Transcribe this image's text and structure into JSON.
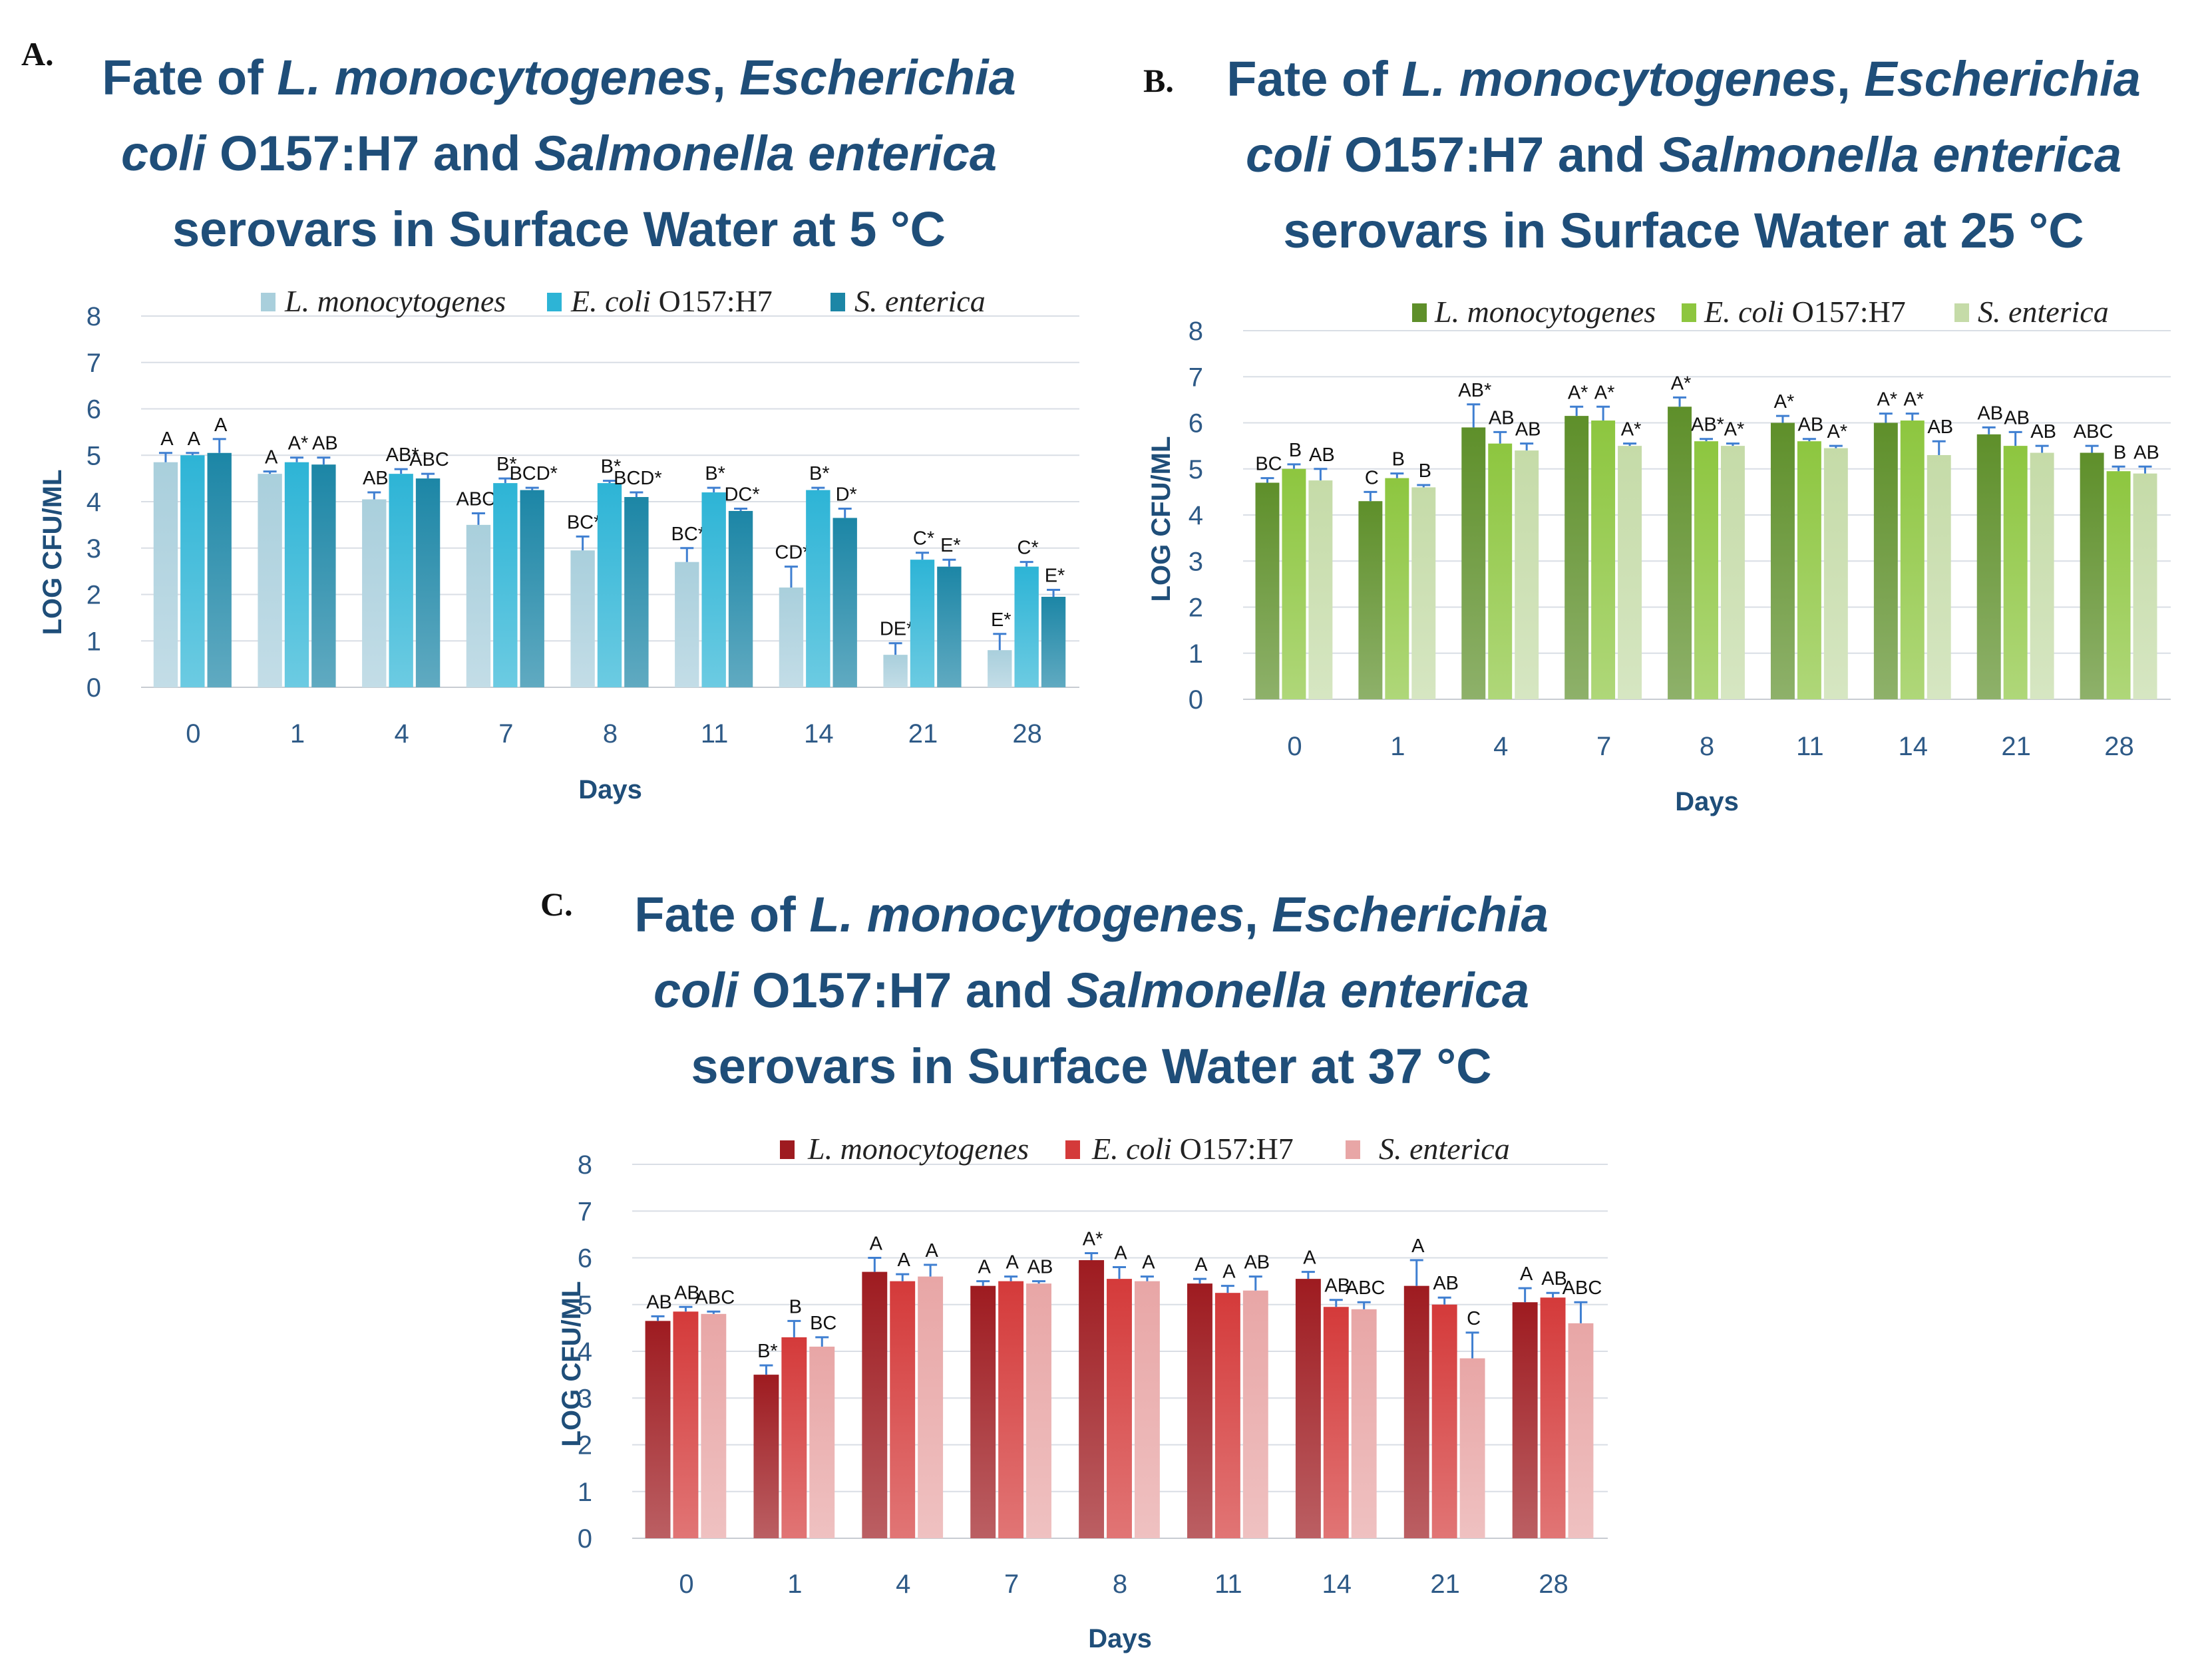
{
  "chart_data": [
    {
      "type": "bar",
      "panel": "A.",
      "title": {
        "pre": "Fate of ",
        "i1": "L. monocytogenes",
        "mid1": ", ",
        "i2": "Escherichia",
        "i3": "coli",
        "mid2": " O157:H7 and ",
        "i4": "Salmonella enterica",
        "line3": "serovars in Surface Water at 5 °C"
      },
      "xlabel": "Days",
      "ylabel": "LOG CFU/ML",
      "ylim": [
        0,
        8
      ],
      "yticks": [
        "0",
        "1",
        "2",
        "3",
        "4",
        "5",
        "6",
        "7",
        "8"
      ],
      "categories": [
        "0",
        "1",
        "4",
        "7",
        "8",
        "11",
        "14",
        "21",
        "28"
      ],
      "series": [
        {
          "name": "L. monocytogenes",
          "color": "#a9cfdc",
          "values": [
            4.85,
            4.6,
            4.05,
            3.5,
            2.95,
            2.7,
            2.15,
            0.7,
            0.8
          ],
          "err": [
            0.2,
            0.05,
            0.15,
            0.25,
            0.3,
            0.3,
            0.45,
            0.25,
            0.35
          ],
          "labels": [
            "A",
            "A",
            "AB",
            "ABC*",
            "BC*",
            "BC*",
            "CD*",
            "DE*",
            "E*"
          ]
        },
        {
          "name": "E. coli O157:H7",
          "color": "#2db4d6",
          "values": [
            5.0,
            4.85,
            4.6,
            4.4,
            4.4,
            4.2,
            4.25,
            2.75,
            2.6
          ],
          "err": [
            0.05,
            0.1,
            0.1,
            0.1,
            0.05,
            0.1,
            0.05,
            0.15,
            0.1
          ],
          "labels": [
            "A",
            "A*",
            "AB*",
            "B*",
            "B*",
            "B*",
            "B*",
            "C*",
            "C*"
          ]
        },
        {
          "name": "S. enterica",
          "color": "#1c86a6",
          "values": [
            5.05,
            4.8,
            4.5,
            4.25,
            4.1,
            3.8,
            3.65,
            2.6,
            1.95
          ],
          "err": [
            0.3,
            0.15,
            0.1,
            0.05,
            0.1,
            0.05,
            0.2,
            0.15,
            0.15
          ],
          "labels": [
            "A",
            "AB",
            "ABC",
            "BCD*",
            "BCD*",
            "DC*",
            "D*",
            "E*",
            "E*"
          ]
        }
      ]
    },
    {
      "type": "bar",
      "panel": "B.",
      "title": {
        "pre": "Fate of ",
        "i1": "L. monocytogenes",
        "mid1": ", ",
        "i2": "Escherichia",
        "i3": "coli",
        "mid2": " O157:H7 and ",
        "i4": "Salmonella enterica",
        "line3": "serovars in Surface Water at 25 °C"
      },
      "xlabel": "Days",
      "ylabel": "LOG CFU/ML",
      "ylim": [
        0,
        8
      ],
      "yticks": [
        "0",
        "1",
        "2",
        "3",
        "4",
        "5",
        "6",
        "7",
        "8"
      ],
      "categories": [
        "0",
        "1",
        "4",
        "7",
        "8",
        "11",
        "14",
        "21",
        "28"
      ],
      "series": [
        {
          "name": "L. monocytogenes",
          "color": "#5e8f2a",
          "values": [
            4.7,
            4.3,
            5.9,
            6.15,
            6.35,
            6.0,
            6.0,
            5.75,
            5.35
          ],
          "err": [
            0.1,
            0.2,
            0.5,
            0.2,
            0.2,
            0.15,
            0.2,
            0.15,
            0.15
          ],
          "labels": [
            "BC",
            "C",
            "AB*",
            "A*",
            "A*",
            "A*",
            "A*",
            "AB",
            "ABC"
          ]
        },
        {
          "name": "E. coli O157:H7",
          "color": "#8dc63f",
          "values": [
            5.0,
            4.8,
            5.55,
            6.05,
            5.6,
            5.6,
            6.05,
            5.5,
            4.95
          ],
          "err": [
            0.1,
            0.1,
            0.25,
            0.3,
            0.05,
            0.05,
            0.15,
            0.3,
            0.1
          ],
          "labels": [
            "B",
            "B",
            "AB",
            "A*",
            "AB*",
            "AB",
            "A*",
            "AB",
            "B"
          ]
        },
        {
          "name": "S. enterica",
          "color": "#c5dba8",
          "values": [
            4.75,
            4.6,
            5.4,
            5.5,
            5.5,
            5.45,
            5.3,
            5.35,
            4.9
          ],
          "err": [
            0.25,
            0.05,
            0.15,
            0.05,
            0.05,
            0.05,
            0.3,
            0.15,
            0.15
          ],
          "labels": [
            "AB",
            "B",
            "AB",
            "A*",
            "A*",
            "A*",
            "AB",
            "AB",
            "AB"
          ]
        }
      ]
    },
    {
      "type": "bar",
      "panel": "C.",
      "title": {
        "pre": "Fate of ",
        "i1": "L. monocytogenes",
        "mid1": ", ",
        "i2": "Escherichia",
        "i3": "coli",
        "mid2": " O157:H7 and ",
        "i4": "Salmonella enterica",
        "line3": "serovars in Surface Water at 37 °C"
      },
      "xlabel": "Days",
      "ylabel": "LOG CFU/ML",
      "ylim": [
        0,
        8
      ],
      "yticks": [
        "0",
        "1",
        "2",
        "3",
        "4",
        "5",
        "6",
        "7",
        "8"
      ],
      "categories": [
        "0",
        "1",
        "4",
        "7",
        "8",
        "11",
        "14",
        "21",
        "28"
      ],
      "series": [
        {
          "name": "L. monocytogenes",
          "color": "#9e1b20",
          "values": [
            4.65,
            3.5,
            5.7,
            5.4,
            5.95,
            5.45,
            5.55,
            5.4,
            5.05
          ],
          "err": [
            0.1,
            0.2,
            0.3,
            0.1,
            0.15,
            0.1,
            0.15,
            0.55,
            0.3
          ],
          "labels": [
            "AB",
            "B*",
            "A",
            "A",
            "A*",
            "A",
            "A",
            "A",
            "A"
          ]
        },
        {
          "name": "E. coli O157:H7",
          "color": "#d43a3a",
          "values": [
            4.85,
            4.3,
            5.5,
            5.5,
            5.55,
            5.25,
            4.95,
            5.0,
            5.15
          ],
          "err": [
            0.1,
            0.35,
            0.15,
            0.1,
            0.25,
            0.15,
            0.15,
            0.15,
            0.1
          ],
          "labels": [
            "AB",
            "B",
            "A",
            "A",
            "A",
            "A",
            "AB",
            "AB",
            "AB"
          ]
        },
        {
          "name": "S. enterica",
          "color": "#e8a6a6",
          "values": [
            4.8,
            4.1,
            5.6,
            5.45,
            5.5,
            5.3,
            4.9,
            3.85,
            4.6
          ],
          "err": [
            0.05,
            0.2,
            0.25,
            0.05,
            0.1,
            0.3,
            0.15,
            0.55,
            0.45
          ],
          "labels": [
            "ABC",
            "BC",
            "A",
            "AB",
            "A",
            "AB",
            "ABC",
            "C",
            "ABC"
          ]
        }
      ]
    }
  ]
}
